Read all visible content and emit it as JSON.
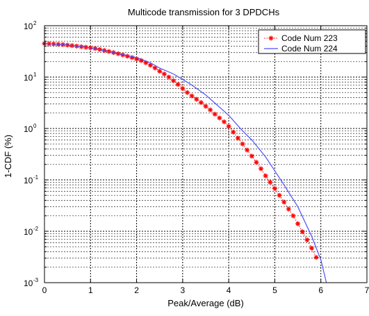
{
  "chart_data": {
    "type": "line",
    "title": "Multicode transmission for 3 DPDCHs",
    "xlabel": "Peak/Average (dB)",
    "ylabel": "1-CDF (%)",
    "xlim": [
      0,
      7
    ],
    "ylim": [
      0.001,
      100
    ],
    "yscale": "log",
    "x_ticks": [
      "0",
      "1",
      "2",
      "3",
      "4",
      "5",
      "6",
      "7"
    ],
    "y_ticks": [
      {
        "base": "10",
        "exp": "-3",
        "value": 0.001
      },
      {
        "base": "10",
        "exp": "-2",
        "value": 0.01
      },
      {
        "base": "10",
        "exp": "-1",
        "value": 0.1
      },
      {
        "base": "10",
        "exp": "0",
        "value": 1
      },
      {
        "base": "10",
        "exp": "1",
        "value": 10
      },
      {
        "base": "10",
        "exp": "2",
        "value": 100
      }
    ],
    "grid": true,
    "legend_position": "top-right",
    "series": [
      {
        "name": "Code Num 223",
        "color": "#ff0000",
        "style": "markers-asterisk-dotted-line",
        "x": [
          0,
          0.1,
          0.2,
          0.3,
          0.4,
          0.5,
          0.6,
          0.7,
          0.8,
          0.9,
          1.0,
          1.1,
          1.2,
          1.3,
          1.4,
          1.5,
          1.6,
          1.7,
          1.8,
          1.9,
          2.0,
          2.1,
          2.2,
          2.3,
          2.4,
          2.5,
          2.6,
          2.7,
          2.8,
          2.9,
          3.0,
          3.1,
          3.2,
          3.3,
          3.4,
          3.5,
          3.6,
          3.7,
          3.8,
          3.9,
          4.0,
          4.1,
          4.2,
          4.3,
          4.4,
          4.5,
          4.6,
          4.7,
          4.8,
          4.9,
          5.0,
          5.1,
          5.2,
          5.3,
          5.4,
          5.5,
          5.6,
          5.7,
          5.8,
          5.9
        ],
        "y": [
          45,
          44.5,
          44,
          43.5,
          43,
          42,
          41,
          40,
          39,
          38,
          37,
          36,
          34.5,
          33,
          31.5,
          30,
          28.5,
          27,
          25.5,
          24,
          22.5,
          21,
          19,
          17,
          15,
          13,
          11.5,
          10,
          8.5,
          7.2,
          6,
          5,
          4.3,
          3.7,
          3.2,
          2.7,
          2.3,
          1.9,
          1.6,
          1.35,
          1.1,
          0.85,
          0.65,
          0.5,
          0.38,
          0.29,
          0.22,
          0.165,
          0.12,
          0.09,
          0.068,
          0.05,
          0.037,
          0.027,
          0.02,
          0.014,
          0.0098,
          0.0068,
          0.0047,
          0.0031
        ]
      },
      {
        "name": "Code Num 224",
        "color": "#4d4dff",
        "style": "solid",
        "x": [
          0,
          0.5,
          1.0,
          1.5,
          2.0,
          2.3,
          2.5,
          2.8,
          3.0,
          3.2,
          3.5,
          3.8,
          4.0,
          4.3,
          4.5,
          4.8,
          5.0,
          5.2,
          5.5,
          5.8,
          6.0,
          6.12
        ],
        "y": [
          45,
          42,
          37,
          30,
          24,
          19,
          15,
          11.5,
          9,
          7,
          4.5,
          2.6,
          1.8,
          0.9,
          0.6,
          0.28,
          0.15,
          0.08,
          0.03,
          0.008,
          0.0028,
          0.001
        ]
      }
    ]
  }
}
